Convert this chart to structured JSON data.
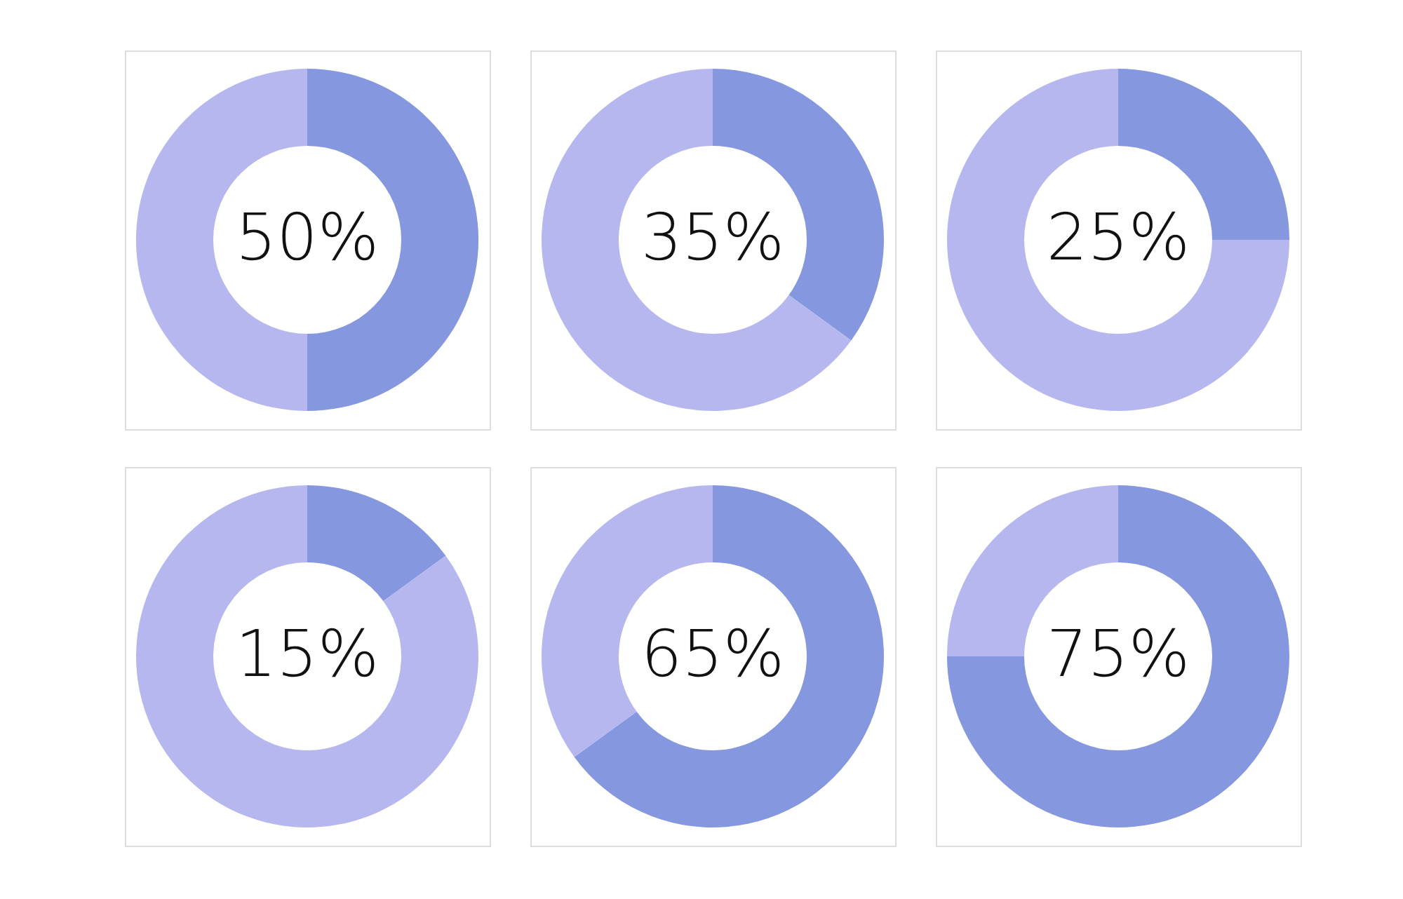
{
  "chart_data": [
    {
      "type": "donut",
      "categories": [
        null,
        null
      ],
      "values": [
        50,
        50
      ],
      "colors": [
        "#8497df",
        "#b6b7ef"
      ],
      "value_labels": [
        "50%",
        null
      ]
    },
    {
      "type": "donut",
      "categories": [
        null,
        null
      ],
      "values": [
        35,
        65
      ],
      "colors": [
        "#8497df",
        "#b6b7ef"
      ],
      "value_labels": [
        "35%",
        null
      ]
    },
    {
      "type": "donut",
      "categories": [
        null,
        null
      ],
      "values": [
        25,
        75
      ],
      "colors": [
        "#8497df",
        "#b6b7ef"
      ],
      "value_labels": [
        "25%",
        null
      ]
    },
    {
      "type": "donut",
      "categories": [
        null,
        null
      ],
      "values": [
        15,
        85
      ],
      "colors": [
        "#8497df",
        "#b6b7ef"
      ],
      "value_labels": [
        "15%",
        null
      ]
    },
    {
      "type": "donut",
      "categories": [
        null,
        null
      ],
      "values": [
        65,
        35
      ],
      "colors": [
        "#8497df",
        "#b6b7ef"
      ],
      "value_labels": [
        "65%",
        null
      ]
    },
    {
      "type": "donut",
      "categories": [
        null,
        null
      ],
      "values": [
        75,
        25
      ],
      "colors": [
        "#8497df",
        "#b6b7ef"
      ],
      "value_labels": [
        "75%",
        null
      ]
    }
  ]
}
